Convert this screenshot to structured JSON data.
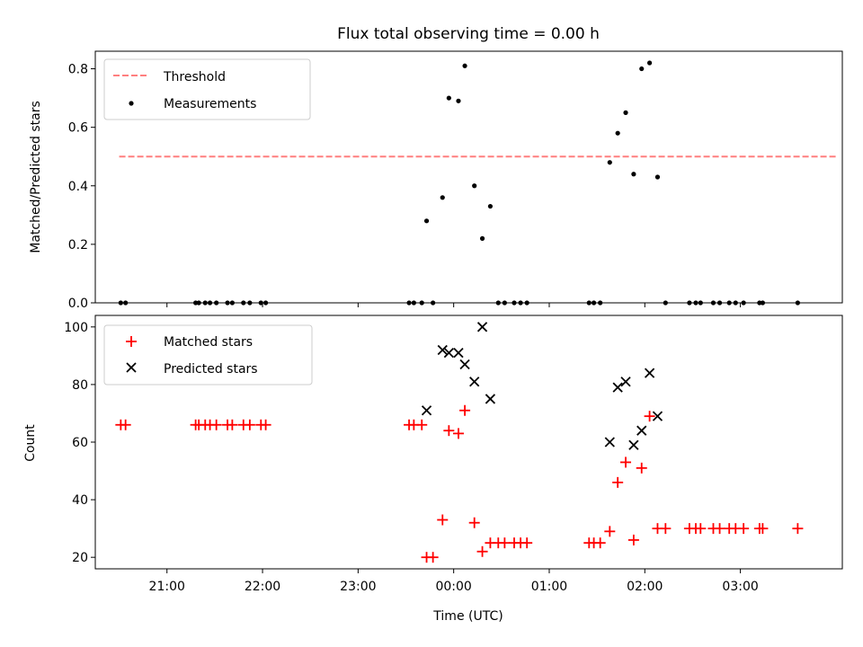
{
  "chart_data": [
    {
      "type": "scatter",
      "title": "Flux total observing time = 0.00 h",
      "xlabel": "",
      "ylabel": "Matched/Predicted stars",
      "ylim": [
        0,
        0.86
      ],
      "xlim": [
        "20:15",
        "04:04"
      ],
      "yticks": [
        "0.0",
        "0.2",
        "0.4",
        "0.6",
        "0.8"
      ],
      "ytick_values": [
        0,
        0.2,
        0.4,
        0.6,
        0.8
      ],
      "legend_position": "top-left",
      "grid": false,
      "threshold": {
        "name": "Threshold",
        "value": 0.5,
        "x_range": [
          "20:30",
          "04:00"
        ],
        "color": "#ff7f7f",
        "style": "dashed"
      },
      "series": [
        {
          "name": "Measurements",
          "marker": "dot",
          "color": "#000000",
          "points": [
            {
              "x": "20:31",
              "y": 0
            },
            {
              "x": "20:34",
              "y": 0
            },
            {
              "x": "21:18",
              "y": 0
            },
            {
              "x": "21:20",
              "y": 0
            },
            {
              "x": "21:24",
              "y": 0
            },
            {
              "x": "21:27",
              "y": 0
            },
            {
              "x": "21:31",
              "y": 0
            },
            {
              "x": "21:38",
              "y": 0
            },
            {
              "x": "21:41",
              "y": 0
            },
            {
              "x": "21:48",
              "y": 0
            },
            {
              "x": "21:52",
              "y": 0
            },
            {
              "x": "21:59",
              "y": 0
            },
            {
              "x": "22:02",
              "y": 0
            },
            {
              "x": "23:32",
              "y": 0
            },
            {
              "x": "23:35",
              "y": 0
            },
            {
              "x": "23:40",
              "y": 0
            },
            {
              "x": "23:43",
              "y": 0.28
            },
            {
              "x": "23:47",
              "y": 0
            },
            {
              "x": "23:53",
              "y": 0.36
            },
            {
              "x": "23:57",
              "y": 0.7
            },
            {
              "x": "00:03",
              "y": 0.69
            },
            {
              "x": "00:07",
              "y": 0.81
            },
            {
              "x": "00:13",
              "y": 0.4
            },
            {
              "x": "00:18",
              "y": 0.22
            },
            {
              "x": "00:23",
              "y": 0.33
            },
            {
              "x": "00:28",
              "y": 0
            },
            {
              "x": "00:32",
              "y": 0
            },
            {
              "x": "00:38",
              "y": 0
            },
            {
              "x": "00:42",
              "y": 0
            },
            {
              "x": "00:46",
              "y": 0
            },
            {
              "x": "01:25",
              "y": 0
            },
            {
              "x": "01:28",
              "y": 0
            },
            {
              "x": "01:32",
              "y": 0
            },
            {
              "x": "01:38",
              "y": 0.48
            },
            {
              "x": "01:43",
              "y": 0.58
            },
            {
              "x": "01:48",
              "y": 0.65
            },
            {
              "x": "01:53",
              "y": 0.44
            },
            {
              "x": "01:58",
              "y": 0.8
            },
            {
              "x": "02:03",
              "y": 0.82
            },
            {
              "x": "02:08",
              "y": 0.43
            },
            {
              "x": "02:13",
              "y": 0
            },
            {
              "x": "02:28",
              "y": 0
            },
            {
              "x": "02:32",
              "y": 0
            },
            {
              "x": "02:35",
              "y": 0
            },
            {
              "x": "02:43",
              "y": 0
            },
            {
              "x": "02:47",
              "y": 0
            },
            {
              "x": "02:53",
              "y": 0
            },
            {
              "x": "02:57",
              "y": 0
            },
            {
              "x": "03:02",
              "y": 0
            },
            {
              "x": "03:12",
              "y": 0
            },
            {
              "x": "03:14",
              "y": 0
            },
            {
              "x": "03:36",
              "y": 0
            }
          ]
        }
      ]
    },
    {
      "type": "scatter",
      "title": "",
      "xlabel": "Time (UTC)",
      "ylabel": "Count",
      "ylim": [
        16,
        104
      ],
      "xlim": [
        "20:15",
        "04:04"
      ],
      "yticks": [
        "20",
        "40",
        "60",
        "80",
        "100"
      ],
      "ytick_values": [
        20,
        40,
        60,
        80,
        100
      ],
      "xticks": [
        "21:00",
        "22:00",
        "23:00",
        "00:00",
        "01:00",
        "02:00",
        "03:00"
      ],
      "legend_position": "top-left",
      "grid": false,
      "series": [
        {
          "name": "Matched stars",
          "marker": "plus",
          "color": "#ff0000",
          "points": [
            {
              "x": "20:31",
              "y": 66
            },
            {
              "x": "20:34",
              "y": 66
            },
            {
              "x": "21:18",
              "y": 66
            },
            {
              "x": "21:20",
              "y": 66
            },
            {
              "x": "21:24",
              "y": 66
            },
            {
              "x": "21:27",
              "y": 66
            },
            {
              "x": "21:31",
              "y": 66
            },
            {
              "x": "21:38",
              "y": 66
            },
            {
              "x": "21:41",
              "y": 66
            },
            {
              "x": "21:48",
              "y": 66
            },
            {
              "x": "21:52",
              "y": 66
            },
            {
              "x": "21:59",
              "y": 66
            },
            {
              "x": "22:02",
              "y": 66
            },
            {
              "x": "23:32",
              "y": 66
            },
            {
              "x": "23:35",
              "y": 66
            },
            {
              "x": "23:40",
              "y": 66
            },
            {
              "x": "23:43",
              "y": 20
            },
            {
              "x": "23:47",
              "y": 20
            },
            {
              "x": "23:53",
              "y": 33
            },
            {
              "x": "23:57",
              "y": 64
            },
            {
              "x": "00:03",
              "y": 63
            },
            {
              "x": "00:07",
              "y": 71
            },
            {
              "x": "00:13",
              "y": 32
            },
            {
              "x": "00:18",
              "y": 22
            },
            {
              "x": "00:23",
              "y": 25
            },
            {
              "x": "00:28",
              "y": 25
            },
            {
              "x": "00:32",
              "y": 25
            },
            {
              "x": "00:38",
              "y": 25
            },
            {
              "x": "00:42",
              "y": 25
            },
            {
              "x": "00:46",
              "y": 25
            },
            {
              "x": "01:25",
              "y": 25
            },
            {
              "x": "01:28",
              "y": 25
            },
            {
              "x": "01:32",
              "y": 25
            },
            {
              "x": "01:38",
              "y": 29
            },
            {
              "x": "01:43",
              "y": 46
            },
            {
              "x": "01:48",
              "y": 53
            },
            {
              "x": "01:53",
              "y": 26
            },
            {
              "x": "01:58",
              "y": 51
            },
            {
              "x": "02:03",
              "y": 69
            },
            {
              "x": "02:08",
              "y": 30
            },
            {
              "x": "02:13",
              "y": 30
            },
            {
              "x": "02:28",
              "y": 30
            },
            {
              "x": "02:32",
              "y": 30
            },
            {
              "x": "02:35",
              "y": 30
            },
            {
              "x": "02:43",
              "y": 30
            },
            {
              "x": "02:47",
              "y": 30
            },
            {
              "x": "02:53",
              "y": 30
            },
            {
              "x": "02:57",
              "y": 30
            },
            {
              "x": "03:02",
              "y": 30
            },
            {
              "x": "03:12",
              "y": 30
            },
            {
              "x": "03:14",
              "y": 30
            },
            {
              "x": "03:36",
              "y": 30
            }
          ]
        },
        {
          "name": "Predicted stars",
          "marker": "x",
          "color": "#000000",
          "points": [
            {
              "x": "23:43",
              "y": 71
            },
            {
              "x": "23:53",
              "y": 92
            },
            {
              "x": "23:57",
              "y": 91
            },
            {
              "x": "00:03",
              "y": 91
            },
            {
              "x": "00:07",
              "y": 87
            },
            {
              "x": "00:13",
              "y": 81
            },
            {
              "x": "00:18",
              "y": 100
            },
            {
              "x": "00:23",
              "y": 75
            },
            {
              "x": "01:38",
              "y": 60
            },
            {
              "x": "01:43",
              "y": 79
            },
            {
              "x": "01:48",
              "y": 81
            },
            {
              "x": "01:53",
              "y": 59
            },
            {
              "x": "01:58",
              "y": 64
            },
            {
              "x": "02:03",
              "y": 84
            },
            {
              "x": "02:08",
              "y": 69
            }
          ]
        }
      ]
    }
  ]
}
